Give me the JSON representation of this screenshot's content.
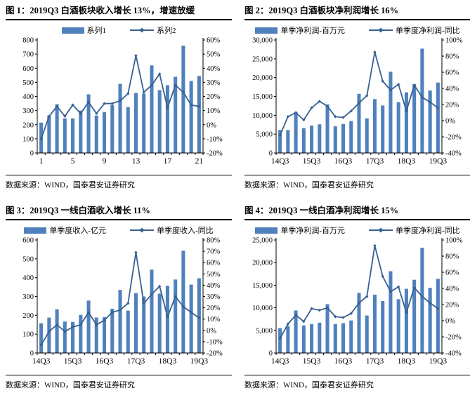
{
  "colors": {
    "bar": "#4F81BD",
    "line": "#376092",
    "axis": "#000000",
    "text": "#000000"
  },
  "chart_data": [
    {
      "type": "bar+line",
      "title": "图 1：2019Q3 白酒板块收入增长 13%，增速放缓",
      "source": "数据来源：WIND，国泰君安证券研究",
      "x_tick_labels": [
        "1",
        "5",
        "9",
        "13",
        "17",
        "21"
      ],
      "x_tick_positions": [
        0,
        4,
        8,
        12,
        16,
        20
      ],
      "left_axis": {
        "min": 0,
        "max": 800,
        "step": 100
      },
      "right_axis": {
        "min": -20,
        "max": 60,
        "step": 10,
        "unit": "%"
      },
      "series": [
        {
          "name": "系列1",
          "type": "bar",
          "axis": "left",
          "values": [
            215,
            265,
            345,
            245,
            245,
            300,
            415,
            265,
            290,
            340,
            490,
            325,
            425,
            420,
            620,
            445,
            480,
            540,
            760,
            510,
            545
          ]
        },
        {
          "name": "系列2",
          "type": "line",
          "axis": "right",
          "values": [
            -10,
            6,
            13,
            6,
            14,
            8,
            16,
            8,
            15,
            15,
            17,
            22,
            49,
            23,
            28,
            36,
            12,
            28,
            23,
            14,
            13
          ]
        }
      ]
    },
    {
      "type": "bar+line",
      "title": "图 2：2019Q3 白酒板块净利润增长 16%",
      "source": "数据来源：WIND，国泰君安证券研究",
      "x_tick_labels": [
        "14Q3",
        "15Q3",
        "16Q3",
        "17Q3",
        "18Q3",
        "19Q3"
      ],
      "x_tick_positions": [
        0,
        4,
        8,
        12,
        16,
        20
      ],
      "left_axis": {
        "min": 0,
        "max": 30000,
        "step": 5000
      },
      "right_axis": {
        "min": -40,
        "max": 100,
        "step": 20,
        "unit": "%"
      },
      "series": [
        {
          "name": "单季净利润-百万元",
          "type": "bar",
          "axis": "left",
          "values": [
            6100,
            6100,
            10900,
            6600,
            7300,
            7600,
            12900,
            7100,
            7700,
            8500,
            15700,
            9200,
            14300,
            12600,
            21600,
            13500,
            16100,
            18300,
            27700,
            16600,
            18700
          ]
        },
        {
          "name": "单季度净利润-同比",
          "type": "line",
          "axis": "right",
          "values": [
            -18,
            5,
            10,
            1,
            16,
            24,
            18,
            5,
            4,
            12,
            22,
            31,
            85,
            49,
            38,
            45,
            12,
            44,
            29,
            23,
            16
          ]
        }
      ]
    },
    {
      "type": "bar+line",
      "title": "图 3：2019Q3 一线白酒收入增长 11%",
      "source": "数据来源：WIND，国泰君安证券研究",
      "x_tick_labels": [
        "14Q3",
        "15Q3",
        "16Q3",
        "17Q3",
        "18Q3",
        "19Q3"
      ],
      "x_tick_positions": [
        0,
        4,
        8,
        12,
        16,
        20
      ],
      "left_axis": {
        "min": 0,
        "max": 600,
        "step": 100
      },
      "right_axis": {
        "min": -20,
        "max": 80,
        "step": 10,
        "unit": "%"
      },
      "series": [
        {
          "name": "单季度收入-亿元",
          "type": "bar",
          "axis": "left",
          "values": [
            158,
            188,
            232,
            167,
            165,
            202,
            278,
            188,
            190,
            235,
            335,
            225,
            318,
            300,
            443,
            315,
            357,
            390,
            543,
            363,
            397
          ]
        },
        {
          "name": "单季度收入-同比",
          "type": "line",
          "axis": "right",
          "values": [
            -13,
            -1,
            5,
            -1,
            3,
            5,
            16,
            5,
            9,
            16,
            18,
            24,
            69,
            24,
            32,
            39,
            12,
            30,
            21,
            16,
            11
          ]
        }
      ]
    },
    {
      "type": "bar+line",
      "title": "图 4：2019Q3 一线白酒净利润增长 15%",
      "source": "数据来源：WIND，国泰君安证券研究",
      "x_tick_labels": [
        "14Q3",
        "15Q3",
        "16Q3",
        "17Q3",
        "18Q3",
        "19Q3"
      ],
      "x_tick_positions": [
        0,
        4,
        8,
        12,
        16,
        20
      ],
      "left_axis": {
        "min": 0,
        "max": 25000,
        "step": 5000
      },
      "right_axis": {
        "min": -40,
        "max": 100,
        "step": 20,
        "unit": "%"
      },
      "series": [
        {
          "name": "单季净利润-百万元",
          "type": "bar",
          "axis": "left",
          "values": [
            5500,
            6000,
            9400,
            6100,
            6400,
            6700,
            10800,
            6400,
            6600,
            7200,
            13300,
            8300,
            12900,
            11500,
            18100,
            11900,
            14200,
            16200,
            23300,
            14400,
            16400
          ]
        },
        {
          "name": "单季度净利润-同比",
          "type": "line",
          "axis": "right",
          "values": [
            -22,
            -4,
            7,
            -1,
            15,
            13,
            16,
            5,
            4,
            9,
            22,
            30,
            93,
            55,
            36,
            42,
            10,
            41,
            30,
            22,
            15
          ]
        }
      ]
    }
  ]
}
